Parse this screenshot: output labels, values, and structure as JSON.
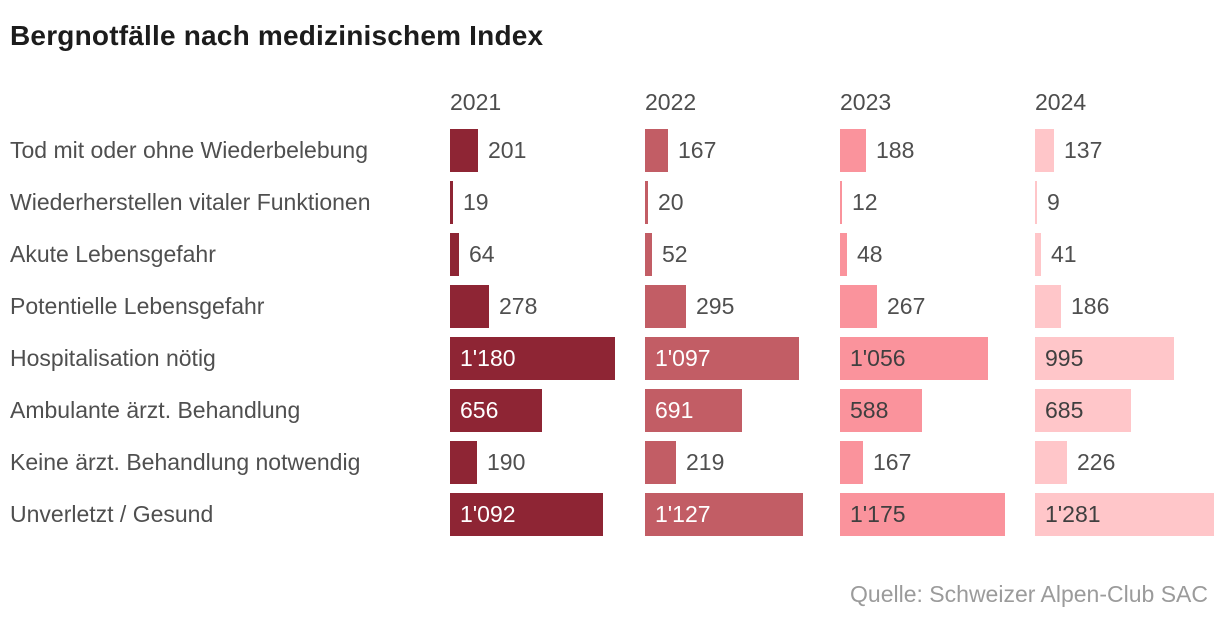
{
  "title": "Bergnotfälle nach medizinischem Index",
  "source": "Quelle: Schweizer Alpen-Club SAC",
  "colors": {
    "background": "#ffffff",
    "title_text": "#1c1c1c",
    "label_text": "#4f4f4f",
    "source_text": "#9b9b9b",
    "year_2021": "#8e2534",
    "year_2022": "#c25d65",
    "year_2023": "#fa939c",
    "year_2024": "#ffc6c9"
  },
  "chart_data": {
    "type": "bar",
    "orientation": "horizontal",
    "title": "Bergnotfälle nach medizinischem Index",
    "categories": [
      "Tod mit oder ohne Wiederbelebung",
      "Wiederherstellen vitaler Funktionen",
      "Akute Lebensgefahr",
      "Potentielle Lebensgefahr",
      "Hospitalisation nötig",
      "Ambulante ärzt. Behandlung",
      "Keine ärzt. Behandlung notwendig",
      "Unverletzt / Gesund"
    ],
    "series": [
      {
        "name": "2021",
        "color": "#8e2534",
        "inside_label_color": "#ffffff",
        "values": [
          201,
          19,
          64,
          278,
          1180,
          656,
          190,
          1092
        ],
        "labels": [
          "201",
          "19",
          "64",
          "278",
          "1'180",
          "656",
          "190",
          "1'092"
        ]
      },
      {
        "name": "2022",
        "color": "#c25d65",
        "inside_label_color": "#ffffff",
        "values": [
          167,
          20,
          52,
          295,
          1097,
          691,
          219,
          1127
        ],
        "labels": [
          "167",
          "20",
          "52",
          "295",
          "1'097",
          "691",
          "219",
          "1'127"
        ]
      },
      {
        "name": "2023",
        "color": "#fa939c",
        "inside_label_color": "#3f3f3f",
        "values": [
          188,
          12,
          48,
          267,
          1056,
          588,
          167,
          1175
        ],
        "labels": [
          "188",
          "12",
          "48",
          "267",
          "1'056",
          "588",
          "167",
          "1'175"
        ]
      },
      {
        "name": "2024",
        "color": "#ffc6c9",
        "inside_label_color": "#3f3f3f",
        "values": [
          137,
          9,
          41,
          186,
          995,
          685,
          226,
          1281
        ],
        "labels": [
          "137",
          "9",
          "41",
          "186",
          "995",
          "685",
          "226",
          "1'281"
        ]
      }
    ],
    "xlim": [
      0,
      1281
    ],
    "grid": false,
    "legend_position": "column-headers",
    "value_label_inside_threshold": 500,
    "number_format": "apostrophe-thousands-separator"
  }
}
